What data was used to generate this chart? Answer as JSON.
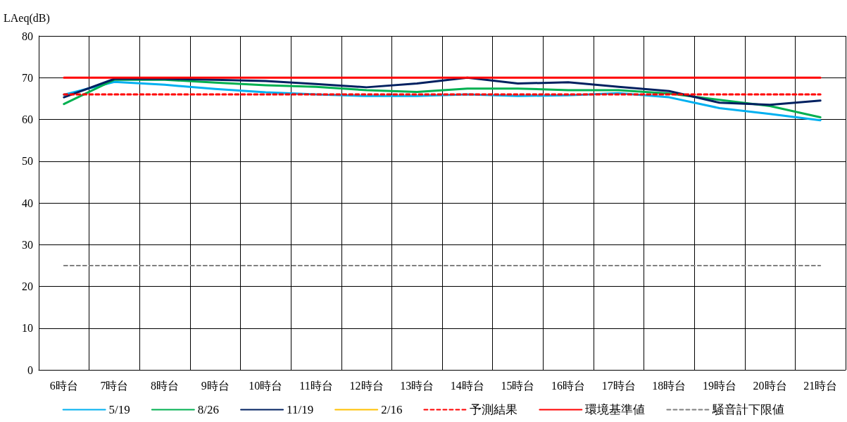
{
  "chart_data": {
    "type": "line",
    "ylabel": "LAeq(dB)",
    "categories": [
      "6時台",
      "7時台",
      "8時台",
      "9時台",
      "10時台",
      "11時台",
      "12時台",
      "13時台",
      "14時台",
      "15時台",
      "16時台",
      "17時台",
      "18時台",
      "19時台",
      "20時台",
      "21時台"
    ],
    "series": [
      {
        "name": "5/19",
        "color": "#00b0f0",
        "values": [
          65.9,
          69,
          68.3,
          67.3,
          66.5,
          66,
          65.6,
          65.6,
          66,
          65.6,
          65.8,
          66.3,
          65.3,
          62.7,
          61.3,
          59.8
        ]
      },
      {
        "name": "8/26",
        "color": "#00b050",
        "values": [
          63.7,
          69.5,
          69.5,
          68.8,
          68.2,
          67.8,
          67,
          66.6,
          67.4,
          67.4,
          67,
          67,
          66.2,
          64.7,
          63.2,
          60.5
        ]
      },
      {
        "name": "11/19",
        "color": "#002060",
        "values": [
          65.3,
          69.7,
          69.7,
          69.5,
          69.2,
          68.5,
          67.7,
          68.6,
          70,
          68.6,
          68.9,
          67.8,
          66.8,
          64,
          63.5,
          64.5
        ]
      },
      {
        "name": "2/16",
        "color": "#ffc000",
        "values": [
          null,
          null,
          null,
          null,
          null,
          null,
          null,
          null,
          null,
          null,
          null,
          null,
          null,
          null,
          null,
          null
        ]
      },
      {
        "name": "予測結果",
        "color": "#ff0000",
        "line_style": "dashed",
        "values": [
          66,
          66,
          66,
          66,
          66,
          66,
          66,
          66,
          66,
          66,
          66,
          66,
          66,
          66,
          66,
          66
        ]
      },
      {
        "name": "環境基準値",
        "color": "#ff0000",
        "values": [
          70,
          70,
          70,
          70,
          70,
          70,
          70,
          70,
          70,
          70,
          70,
          70,
          70,
          70,
          70,
          70
        ]
      },
      {
        "name": "騒音計下限値",
        "color": "#808080",
        "line_style": "dashed",
        "values": [
          25,
          25,
          25,
          25,
          25,
          25,
          25,
          25,
          25,
          25,
          25,
          25,
          25,
          25,
          25,
          25
        ]
      }
    ],
    "ylim": [
      0,
      80
    ],
    "yticks": [
      0,
      10,
      20,
      30,
      40,
      50,
      60,
      70,
      80
    ],
    "grid": true,
    "legend": "bottom",
    "marker": "none",
    "line_style": "solid"
  }
}
